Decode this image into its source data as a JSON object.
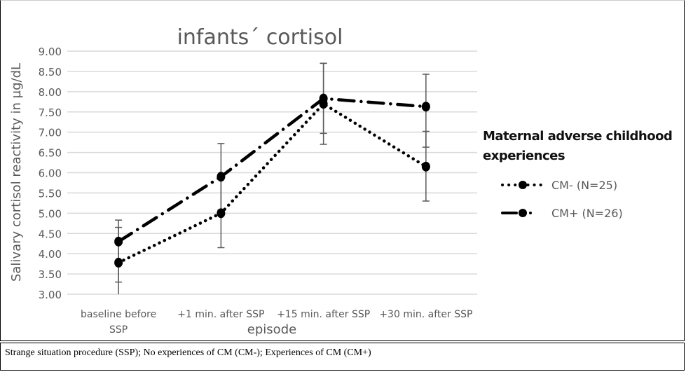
{
  "chart_data": {
    "type": "line",
    "title": "infants´ cortisol",
    "xlabel": "episode",
    "ylabel": "Salivary cortisol reactivity in µg/dL",
    "categories": [
      "baseline before SSP",
      "+1 min. after SSP",
      "+15 min. after SSP",
      "+30 min. after SSP"
    ],
    "category_lines": [
      [
        "baseline before",
        "SSP"
      ],
      [
        "+1 min. after SSP"
      ],
      [
        "+15 min. after SSP"
      ],
      [
        "+30 min. after SSP"
      ]
    ],
    "ylim": [
      3.0,
      9.0
    ],
    "yticks": [
      "3.00",
      "3.50",
      "4.00",
      "4.50",
      "5.00",
      "5.50",
      "6.00",
      "6.50",
      "7.00",
      "7.50",
      "8.00",
      "8.50",
      "9.00"
    ],
    "grid": true,
    "legend_title": "Maternal adverse childhood experiences",
    "legend_placement": "right",
    "series": [
      {
        "name": "CM- (N=25)",
        "style": "dotted",
        "color": "#000000",
        "values": [
          3.78,
          5.0,
          7.7,
          6.15
        ],
        "error_low": [
          3.0,
          4.15,
          6.7,
          5.3
        ],
        "error_high": [
          4.65,
          5.85,
          8.7,
          7.02
        ]
      },
      {
        "name": "CM+ (N=26)",
        "style": "dash-dot",
        "color": "#000000",
        "values": [
          4.3,
          5.9,
          7.83,
          7.63
        ],
        "error_low": [
          3.3,
          5.08,
          6.97,
          6.63
        ],
        "error_high": [
          4.83,
          6.72,
          8.7,
          8.43
        ]
      }
    ]
  },
  "footer": {
    "caption": "Strange situation procedure (SSP); No experiences of CM (CM-); Experiences of CM (CM+)"
  }
}
